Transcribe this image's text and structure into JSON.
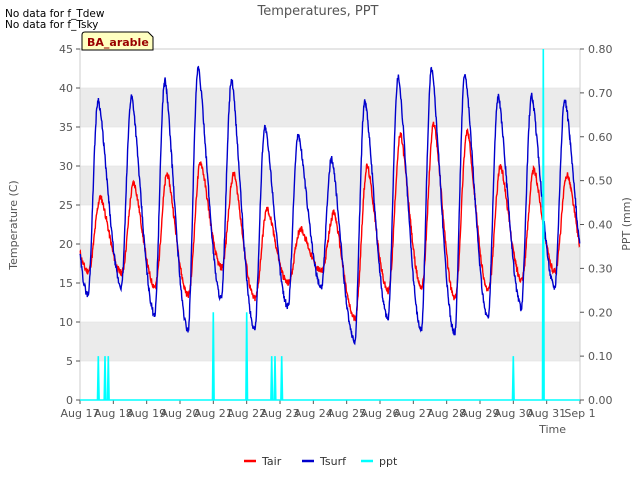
{
  "notes": [
    "No data for f_Tdew",
    "No data for f_Tsky"
  ],
  "chart_data": {
    "type": "line",
    "title": "Temperatures, PPT",
    "badge": "BA_arable",
    "xlabel": "Time",
    "ylabel_left": "Temperature (C)",
    "ylabel_right": "PPT (mm)",
    "x_ticks": [
      "Aug 17",
      "Aug 18",
      "Aug 19",
      "Aug 20",
      "Aug 21",
      "Aug 22",
      "Aug 23",
      "Aug 24",
      "Aug 25",
      "Aug 26",
      "Aug 27",
      "Aug 28",
      "Aug 29",
      "Aug 30",
      "Aug 31",
      "Sep 1"
    ],
    "xlim_days": [
      0,
      15
    ],
    "ylim_left": [
      0,
      45
    ],
    "yticks_left": [
      0,
      5,
      10,
      15,
      20,
      25,
      30,
      35,
      40,
      45
    ],
    "ylim_right": [
      0,
      0.8
    ],
    "yticks_right": [
      "0.00",
      "0.10",
      "0.20",
      "0.30",
      "0.40",
      "0.50",
      "0.60",
      "0.70",
      "0.80"
    ],
    "grid": "horizontal bands",
    "legend_position": "bottom",
    "colors": {
      "Tair": "#ff0000",
      "Tsurf": "#0000cc",
      "ppt": "#00ffff",
      "band": "#ebebeb",
      "badge_bg": "#ffffc0",
      "badge_text": "#990000"
    },
    "series": [
      {
        "name": "Tair",
        "axis": "left",
        "daily": [
          {
            "min": 16.5,
            "max": 26.0
          },
          {
            "min": 16.3,
            "max": 27.8
          },
          {
            "min": 14.6,
            "max": 29.0
          },
          {
            "min": 13.5,
            "max": 30.5
          },
          {
            "min": 17.0,
            "max": 29.0
          },
          {
            "min": 13.0,
            "max": 24.5
          },
          {
            "min": 15.0,
            "max": 22.0
          },
          {
            "min": 16.5,
            "max": 24.0
          },
          {
            "min": 10.5,
            "max": 30.0
          },
          {
            "min": 14.0,
            "max": 34.0
          },
          {
            "min": 14.5,
            "max": 35.5
          },
          {
            "min": 13.0,
            "max": 34.5
          },
          {
            "min": 14.0,
            "max": 30.0
          },
          {
            "min": 15.5,
            "max": 29.5
          },
          {
            "min": 16.5,
            "max": 29.0
          }
        ]
      },
      {
        "name": "Tsurf",
        "axis": "left",
        "daily": [
          {
            "min": 13.5,
            "max": 38.5
          },
          {
            "min": 14.5,
            "max": 39.0
          },
          {
            "min": 11.0,
            "max": 41.0
          },
          {
            "min": 9.0,
            "max": 42.5
          },
          {
            "min": 13.0,
            "max": 41.0
          },
          {
            "min": 9.0,
            "max": 35.0
          },
          {
            "min": 12.0,
            "max": 34.0
          },
          {
            "min": 14.5,
            "max": 31.0
          },
          {
            "min": 7.5,
            "max": 38.5
          },
          {
            "min": 10.5,
            "max": 41.5
          },
          {
            "min": 9.0,
            "max": 42.5
          },
          {
            "min": 8.5,
            "max": 42.0
          },
          {
            "min": 10.5,
            "max": 39.0
          },
          {
            "min": 12.0,
            "max": 39.0
          },
          {
            "min": 14.5,
            "max": 38.5
          }
        ]
      },
      {
        "name": "ppt",
        "axis": "right",
        "events": [
          {
            "day": 0.55,
            "value": 0.1
          },
          {
            "day": 0.75,
            "value": 0.1
          },
          {
            "day": 0.85,
            "value": 0.1
          },
          {
            "day": 4.0,
            "value": 0.2
          },
          {
            "day": 5.0,
            "value": 0.2
          },
          {
            "day": 5.75,
            "value": 0.1
          },
          {
            "day": 5.85,
            "value": 0.1
          },
          {
            "day": 6.05,
            "value": 0.1
          },
          {
            "day": 13.0,
            "value": 0.1
          },
          {
            "day": 13.9,
            "value": 0.8
          }
        ]
      }
    ]
  }
}
